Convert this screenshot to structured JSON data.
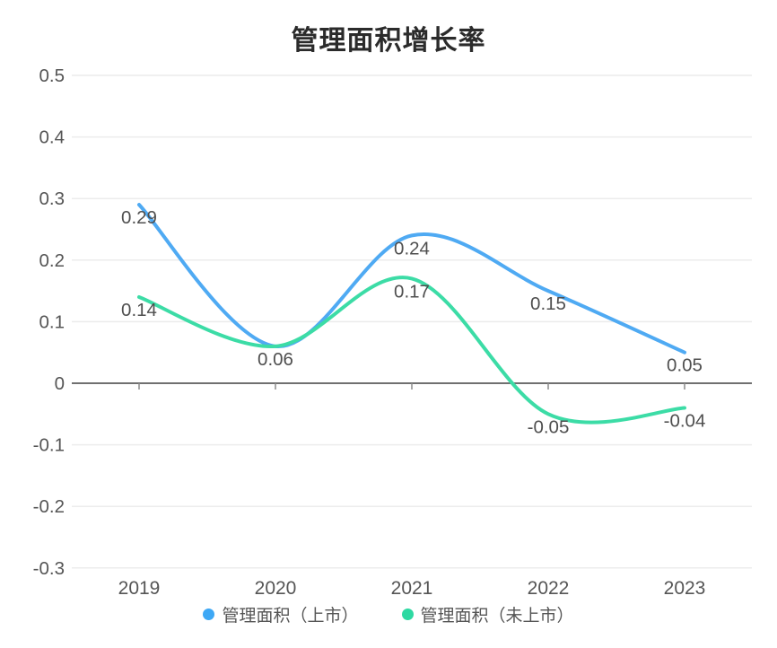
{
  "title": "管理面积增长率",
  "legend": {
    "items": [
      {
        "label": "管理面积（上市）",
        "color": "#3ea8f5",
        "icon": "circle"
      },
      {
        "label": "管理面积（未上市）",
        "color": "#2ed9a2",
        "icon": "circle"
      }
    ]
  },
  "chart_data": {
    "type": "line",
    "title": "管理面积增长率",
    "categories": [
      "2019",
      "2020",
      "2021",
      "2022",
      "2023"
    ],
    "series": [
      {
        "name": "管理面积（上市）",
        "color": "#4faaf3",
        "values": [
          0.29,
          0.06,
          0.24,
          0.15,
          0.05
        ],
        "show_labels": [
          true,
          true,
          true,
          true,
          true
        ]
      },
      {
        "name": "管理面积（未上市）",
        "color": "#3cdca6",
        "values": [
          0.14,
          0.06,
          0.17,
          -0.05,
          -0.04
        ],
        "show_labels": [
          true,
          false,
          true,
          true,
          true
        ]
      }
    ],
    "smooth": true,
    "y_ticks": [
      "0.5",
      "0.4",
      "0.3",
      "0.2",
      "0.1",
      "0",
      "-0.1",
      "-0.2",
      "-0.3"
    ],
    "ylim": [
      -0.3,
      0.5
    ],
    "grid": true,
    "legend_position": "bottom",
    "style": {
      "grid_color": "#ececec",
      "zero_line_color": "#707070",
      "axis_tick_color": "#8a8a8a",
      "axis_label_color": "#555555",
      "data_label_color": "#4f4f4f",
      "title_color": "#2b2b2b",
      "background": "#ffffff"
    }
  }
}
